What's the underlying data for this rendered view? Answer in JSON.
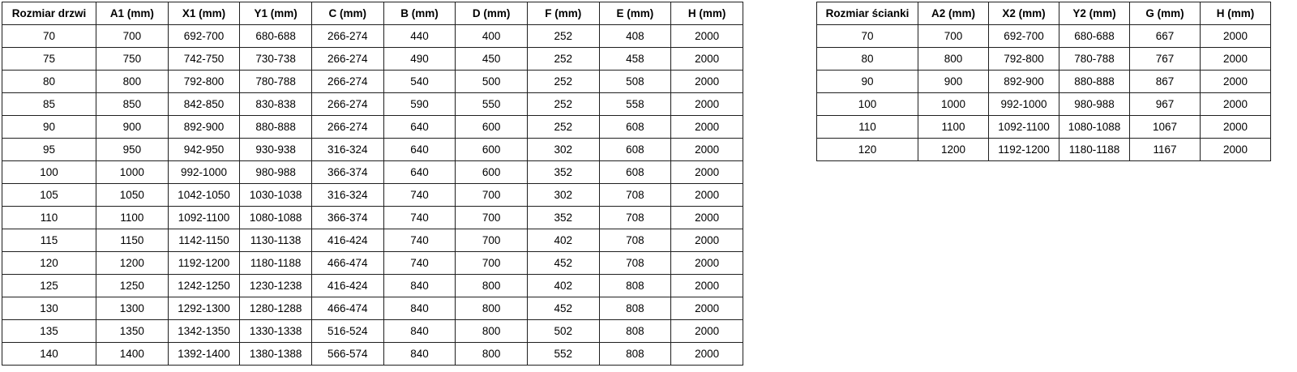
{
  "door_table": {
    "headers": [
      "Rozmiar drzwi",
      "A1 (mm)",
      "X1 (mm)",
      "Y1 (mm)",
      "C (mm)",
      "B (mm)",
      "D (mm)",
      "F (mm)",
      "E (mm)",
      "H (mm)"
    ],
    "rows": [
      [
        "70",
        "700",
        "692-700",
        "680-688",
        "266-274",
        "440",
        "400",
        "252",
        "408",
        "2000"
      ],
      [
        "75",
        "750",
        "742-750",
        "730-738",
        "266-274",
        "490",
        "450",
        "252",
        "458",
        "2000"
      ],
      [
        "80",
        "800",
        "792-800",
        "780-788",
        "266-274",
        "540",
        "500",
        "252",
        "508",
        "2000"
      ],
      [
        "85",
        "850",
        "842-850",
        "830-838",
        "266-274",
        "590",
        "550",
        "252",
        "558",
        "2000"
      ],
      [
        "90",
        "900",
        "892-900",
        "880-888",
        "266-274",
        "640",
        "600",
        "252",
        "608",
        "2000"
      ],
      [
        "95",
        "950",
        "942-950",
        "930-938",
        "316-324",
        "640",
        "600",
        "302",
        "608",
        "2000"
      ],
      [
        "100",
        "1000",
        "992-1000",
        "980-988",
        "366-374",
        "640",
        "600",
        "352",
        "608",
        "2000"
      ],
      [
        "105",
        "1050",
        "1042-1050",
        "1030-1038",
        "316-324",
        "740",
        "700",
        "302",
        "708",
        "2000"
      ],
      [
        "110",
        "1100",
        "1092-1100",
        "1080-1088",
        "366-374",
        "740",
        "700",
        "352",
        "708",
        "2000"
      ],
      [
        "115",
        "1150",
        "1142-1150",
        "1130-1138",
        "416-424",
        "740",
        "700",
        "402",
        "708",
        "2000"
      ],
      [
        "120",
        "1200",
        "1192-1200",
        "1180-1188",
        "466-474",
        "740",
        "700",
        "452",
        "708",
        "2000"
      ],
      [
        "125",
        "1250",
        "1242-1250",
        "1230-1238",
        "416-424",
        "840",
        "800",
        "402",
        "808",
        "2000"
      ],
      [
        "130",
        "1300",
        "1292-1300",
        "1280-1288",
        "466-474",
        "840",
        "800",
        "452",
        "808",
        "2000"
      ],
      [
        "135",
        "1350",
        "1342-1350",
        "1330-1338",
        "516-524",
        "840",
        "800",
        "502",
        "808",
        "2000"
      ],
      [
        "140",
        "1400",
        "1392-1400",
        "1380-1388",
        "566-574",
        "840",
        "800",
        "552",
        "808",
        "2000"
      ]
    ]
  },
  "wall_table": {
    "headers": [
      "Rozmiar ścianki",
      "A2 (mm)",
      "X2 (mm)",
      "Y2 (mm)",
      "G (mm)",
      "H (mm)"
    ],
    "rows": [
      [
        "70",
        "700",
        "692-700",
        "680-688",
        "667",
        "2000"
      ],
      [
        "80",
        "800",
        "792-800",
        "780-788",
        "767",
        "2000"
      ],
      [
        "90",
        "900",
        "892-900",
        "880-888",
        "867",
        "2000"
      ],
      [
        "100",
        "1000",
        "992-1000",
        "980-988",
        "967",
        "2000"
      ],
      [
        "110",
        "1100",
        "1092-1100",
        "1080-1088",
        "1067",
        "2000"
      ],
      [
        "120",
        "1200",
        "1192-1200",
        "1180-1188",
        "1167",
        "2000"
      ]
    ]
  },
  "colors": {
    "border": "#1f1f1f",
    "background": "#ffffff",
    "text": "#000000"
  }
}
